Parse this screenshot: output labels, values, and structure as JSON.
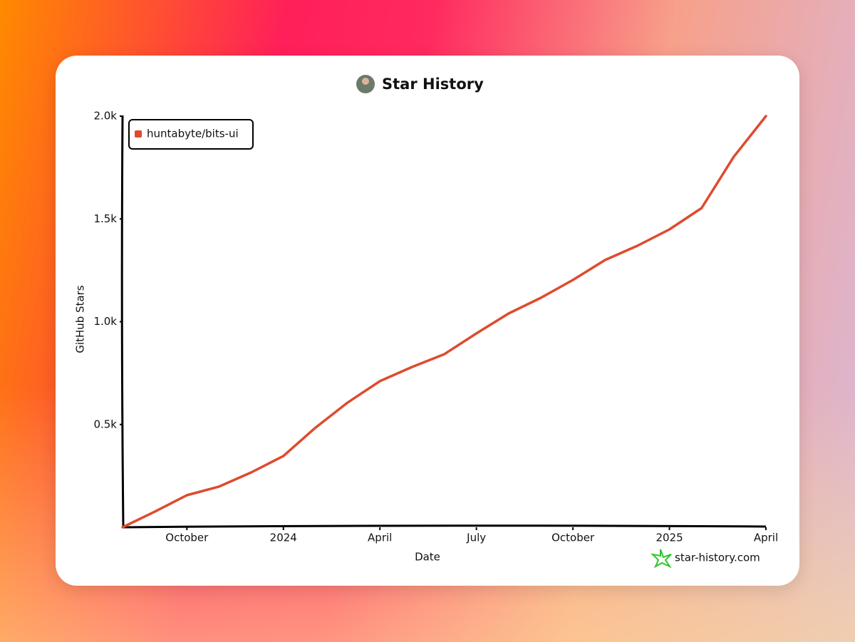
{
  "chart_data": {
    "type": "line",
    "title": "Star History",
    "x_label": "Date",
    "y_label": "GitHub Stars",
    "watermark": "star-history.com",
    "x": [
      "2023-08",
      "2023-09",
      "2023-10",
      "2023-11",
      "2023-12",
      "2024-01",
      "2024-02",
      "2024-03",
      "2024-04",
      "2024-05",
      "2024-06",
      "2024-07",
      "2024-08",
      "2024-09",
      "2024-10",
      "2024-11",
      "2024-12",
      "2025-01",
      "2025-02",
      "2025-03",
      "2025-04"
    ],
    "series": [
      {
        "name": "huntabyte/bits-ui",
        "color": "#dd4b2e",
        "values": [
          0,
          76,
          156,
          198,
          267,
          347,
          485,
          607,
          711,
          780,
          842,
          943,
          1040,
          1116,
          1203,
          1300,
          1369,
          1449,
          1553,
          1802,
          2000
        ]
      }
    ],
    "xlim": [
      "2023-08",
      "2025-04"
    ],
    "xticks": [
      {
        "value": "2023-10",
        "label": "October"
      },
      {
        "value": "2024-01",
        "label": "2024"
      },
      {
        "value": "2024-04",
        "label": "April"
      },
      {
        "value": "2024-07",
        "label": "July"
      },
      {
        "value": "2024-10",
        "label": "October"
      },
      {
        "value": "2025-01",
        "label": "2025"
      },
      {
        "value": "2025-04",
        "label": "April"
      }
    ],
    "ylim": [
      0,
      2000
    ],
    "yticks": [
      {
        "value": 500,
        "label": "0.5k"
      },
      {
        "value": 1000,
        "label": "1.0k"
      },
      {
        "value": 1500,
        "label": "1.5k"
      },
      {
        "value": 2000,
        "label": "2.0k"
      }
    ],
    "grid": false
  }
}
